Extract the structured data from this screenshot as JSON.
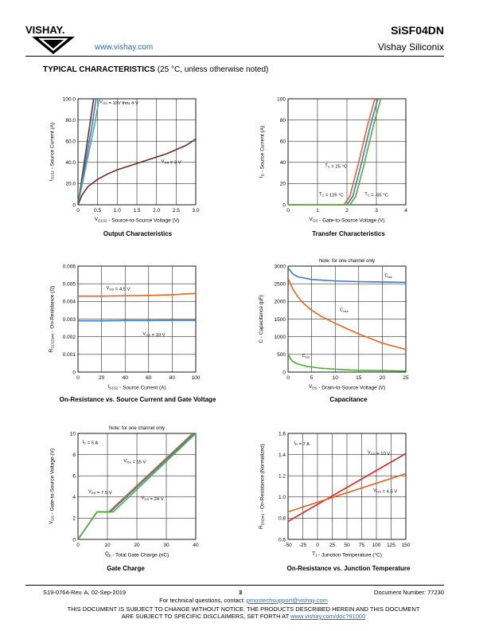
{
  "header": {
    "logo_text": "VISHAY.",
    "url": "www.vishay.com",
    "part_number": "SiSF04DN",
    "company": "Vishay Siliconix"
  },
  "section": {
    "title": "TYPICAL CHARACTERISTICS",
    "subtitle": "(25 °C, unless otherwise noted)"
  },
  "captions": {
    "c1": "Output Characteristics",
    "c2": "Transfer Characteristics",
    "c3": "On-Resistance vs. Source Current and Gate Voltage",
    "c4": "Capacitance",
    "c5": "Gate Charge",
    "c6": "On-Resistance vs. Junction Temperature"
  },
  "footer": {
    "doc_rev": "S19-0764-Rev. A, 02-Sep-2019",
    "page": "3",
    "doc_number": "Document Number: 77230",
    "contact_prefix": "For technical questions, contact: ",
    "contact_email": "pmostechsupport@vishay.com",
    "disclaimer1": "THIS DOCUMENT IS SUBJECT TO CHANGE WITHOUT NOTICE. THE PRODUCTS DESCRIBED HEREIN AND THIS DOCUMENT",
    "disclaimer2_prefix": "ARE SUBJECT TO SPECIFIC DISCLAIMERS, SET FORTH AT ",
    "disclaimer2_link": "www.vishay.com/doc?91000"
  },
  "chart_data": [
    {
      "id": "c1",
      "type": "line",
      "xlabel": "V_D1S2 - Source-to-Source Voltage (V)",
      "ylabel": "I_S1S2 - Source Current (A)",
      "xlim": [
        0,
        3.0
      ],
      "ylim": [
        0,
        100
      ],
      "xticks": [
        "0",
        "0.5",
        "1.0",
        "1.5",
        "2.0",
        "2.5",
        "3.0"
      ],
      "yticks": [
        "0",
        "20.0",
        "40.0",
        "60.0",
        "80.0",
        "100.0"
      ],
      "grid": true,
      "series": [
        {
          "name": "V_GS = 10V thru 4 V",
          "color": "#6b2e1e",
          "x": [
            0,
            0.1,
            0.2,
            0.3,
            0.4
          ],
          "y": [
            0,
            25,
            50,
            75,
            100
          ]
        },
        {
          "name": "",
          "color": "#3a78c8",
          "x": [
            0,
            0.12,
            0.24,
            0.36,
            0.46
          ],
          "y": [
            0,
            25,
            50,
            75,
            100
          ]
        },
        {
          "name": "",
          "color": "#4aa8a8",
          "x": [
            0,
            0.14,
            0.28,
            0.42,
            0.54
          ],
          "y": [
            0,
            25,
            50,
            75,
            100
          ]
        },
        {
          "name": "V_GS = 3 V",
          "color": "#6b2e1e",
          "x": [
            0,
            0.1,
            0.25,
            0.5,
            0.75,
            1.0,
            1.25,
            1.5,
            1.75,
            2.0,
            2.25,
            2.5,
            2.75,
            3.0
          ],
          "y": [
            0,
            9,
            17,
            24,
            29,
            33,
            36,
            39,
            42,
            45,
            48,
            52,
            56,
            62
          ]
        }
      ],
      "annotations": [
        "V_GS = 10V thru 4 V",
        "V_GS = 3 V"
      ]
    },
    {
      "id": "c2",
      "type": "line",
      "xlabel": "V_GS - Gate-to-Source Voltage (V)",
      "ylabel": "I_D - Source Current (A)",
      "xlim": [
        0,
        4
      ],
      "ylim": [
        0,
        100
      ],
      "xticks": [
        "0",
        "1",
        "2",
        "3",
        "4"
      ],
      "yticks": [
        "0",
        "20",
        "40",
        "60",
        "80",
        "100"
      ],
      "grid": true,
      "series": [
        {
          "name": "T_C = 25 °C",
          "color": "#3a78c8",
          "x": [
            0,
            2.0,
            2.2,
            2.5,
            2.8,
            3.05
          ],
          "y": [
            0,
            0,
            8,
            40,
            75,
            100
          ]
        },
        {
          "name": "T_C = 125 °C",
          "color": "#e8621e",
          "x": [
            0,
            1.9,
            2.1,
            2.4,
            2.7,
            2.95
          ],
          "y": [
            0,
            0,
            8,
            40,
            75,
            100
          ]
        },
        {
          "name": "T_C = -55 °C",
          "color": "#4caf32",
          "x": [
            0,
            2.1,
            2.3,
            2.6,
            2.9,
            3.15
          ],
          "y": [
            0,
            0,
            8,
            40,
            75,
            100
          ]
        }
      ],
      "annotations": [
        "T_C = 25 °C",
        "T_C = 125 °C",
        "T_C = -55 °C"
      ]
    },
    {
      "id": "c3",
      "type": "line",
      "xlabel": "I_S1S2 - Source Current (A)",
      "ylabel": "R_S1S2(on) - On-Resistance (Ω)",
      "xlim": [
        0,
        100
      ],
      "ylim": [
        0,
        0.006
      ],
      "xticks": [
        "0",
        "20",
        "40",
        "60",
        "80",
        "100"
      ],
      "yticks": [
        "0",
        "0.001",
        "0.002",
        "0.003",
        "0.004",
        "0.005",
        "0.006"
      ],
      "grid": true,
      "series": [
        {
          "name": "V_GS = 4.5 V",
          "color": "#e8621e",
          "x": [
            0,
            20,
            40,
            60,
            80,
            100
          ],
          "y": [
            0.0043,
            0.0043,
            0.00432,
            0.00434,
            0.00438,
            0.00445
          ]
        },
        {
          "name": "V_GS = 10 V",
          "color": "#3a78c8",
          "x": [
            0,
            20,
            40,
            60,
            80,
            100
          ],
          "y": [
            0.0029,
            0.0029,
            0.00292,
            0.00292,
            0.00293,
            0.00293
          ]
        }
      ],
      "annotations": [
        "V_GS = 4.5 V",
        "V_GS = 10 V"
      ]
    },
    {
      "id": "c4",
      "type": "line",
      "note": "Note: for one channel only",
      "xlabel": "V_DS - Drain-to-Source Voltage (V)",
      "ylabel": "C - Capacitance (pF)",
      "xlim": [
        0,
        25
      ],
      "ylim": [
        0,
        3000
      ],
      "xticks": [
        "0",
        "5",
        "10",
        "15",
        "20",
        "25"
      ],
      "yticks": [
        "0",
        "500",
        "1000",
        "1500",
        "2000",
        "2500",
        "3000"
      ],
      "grid": true,
      "series": [
        {
          "name": "C_iss",
          "color": "#3a78c8",
          "x": [
            0,
            1,
            2,
            5,
            10,
            15,
            20,
            25
          ],
          "y": [
            2950,
            2780,
            2700,
            2620,
            2580,
            2560,
            2550,
            2540
          ]
        },
        {
          "name": "C_oss",
          "color": "#e8621e",
          "x": [
            0,
            1,
            2,
            3,
            5,
            7,
            10,
            15,
            20,
            25
          ],
          "y": [
            2650,
            2350,
            2150,
            1980,
            1750,
            1580,
            1380,
            1080,
            820,
            640
          ]
        },
        {
          "name": "C_rss",
          "color": "#4caf32",
          "x": [
            0,
            0.5,
            1,
            2,
            4,
            7,
            10,
            15,
            20,
            25
          ],
          "y": [
            520,
            380,
            300,
            230,
            160,
            110,
            80,
            50,
            40,
            30
          ]
        }
      ],
      "annotations": [
        "C_iss",
        "C_oss",
        "C_rss"
      ]
    },
    {
      "id": "c5",
      "type": "line",
      "note": "Note: for one channel only",
      "xlabel": "Q_g - Total Gate Charge (nC)",
      "ylabel": "V_GS - Gate-to-Source Voltage (V)",
      "xlim": [
        0,
        40
      ],
      "ylim": [
        0,
        10
      ],
      "xticks": [
        "0",
        "10",
        "20",
        "30",
        "40"
      ],
      "yticks": [
        "0",
        "2",
        "4",
        "6",
        "8",
        "10"
      ],
      "grid": true,
      "series": [
        {
          "name": "V_DS = 7.5 V",
          "color": "#e8621e",
          "x": [
            0,
            6.5,
            10.5,
            39
          ],
          "y": [
            0,
            2.6,
            2.6,
            10
          ]
        },
        {
          "name": "V_DS = 15 V",
          "color": "#3a78c8",
          "x": [
            0,
            6.5,
            11,
            39.5
          ],
          "y": [
            0,
            2.6,
            2.6,
            10
          ]
        },
        {
          "name": "V_DS = 24 V",
          "color": "#4caf32",
          "x": [
            0,
            6.5,
            12,
            40
          ],
          "y": [
            0,
            2.6,
            2.6,
            10
          ]
        }
      ],
      "annotations": [
        "I_D = 5 A",
        "V_DS = 15 V",
        "V_DS = 7.5 V",
        "V_DS = 24 V"
      ]
    },
    {
      "id": "c6",
      "type": "line",
      "xlabel": "T_J - Junction Temperature (°C)",
      "ylabel": "R_DS(on) - On-Resistance (Normalized)",
      "xlim": [
        -50,
        150
      ],
      "ylim": [
        0.6,
        1.6
      ],
      "xticks": [
        "-50",
        "-25",
        "0",
        "25",
        "50",
        "75",
        "100",
        "125",
        "150"
      ],
      "yticks": [
        "0.6",
        "0.8",
        "1.0",
        "1.2",
        "1.4",
        "1.6"
      ],
      "grid": true,
      "series": [
        {
          "name": "V_GS = 10 V",
          "color": "#e02020",
          "x": [
            -50,
            150
          ],
          "y": [
            0.77,
            1.41
          ]
        },
        {
          "name": "V_GS = 4.5 V",
          "color": "#e8621e",
          "x": [
            -50,
            150
          ],
          "y": [
            0.86,
            1.22
          ]
        }
      ],
      "annotations": [
        "I_D = 7 A",
        "V_GS = 10 V",
        "V_GS = 4.5 V"
      ]
    }
  ]
}
